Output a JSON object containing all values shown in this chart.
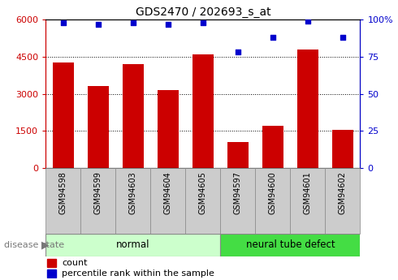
{
  "title": "GDS2470 / 202693_s_at",
  "categories": [
    "GSM94598",
    "GSM94599",
    "GSM94603",
    "GSM94604",
    "GSM94605",
    "GSM94597",
    "GSM94600",
    "GSM94601",
    "GSM94602"
  ],
  "counts": [
    4250,
    3300,
    4200,
    3150,
    4600,
    1050,
    1700,
    4800,
    1550
  ],
  "percentiles": [
    98,
    97,
    98,
    97,
    98,
    78,
    88,
    99,
    88
  ],
  "bar_color": "#cc0000",
  "dot_color": "#0000cc",
  "normal_indices": [
    0,
    1,
    2,
    3,
    4
  ],
  "defect_indices": [
    5,
    6,
    7,
    8
  ],
  "group_labels": [
    "normal",
    "neural tube defect"
  ],
  "group_bg_normal": "#ccffcc",
  "group_bg_defect": "#44dd44",
  "label_bg_color": "#cccccc",
  "left_yticks": [
    0,
    1500,
    3000,
    4500,
    6000
  ],
  "left_yticklabels": [
    "0",
    "1500",
    "3000",
    "4500",
    "6000"
  ],
  "right_yticks": [
    0,
    25,
    50,
    75,
    100
  ],
  "right_yticklabels": [
    "0",
    "25",
    "50",
    "75",
    "100%"
  ],
  "ylim_left": [
    0,
    6000
  ],
  "ylim_right": [
    0,
    100
  ],
  "legend_count_label": "count",
  "legend_percentile_label": "percentile rank within the sample",
  "disease_state_label": "disease state"
}
